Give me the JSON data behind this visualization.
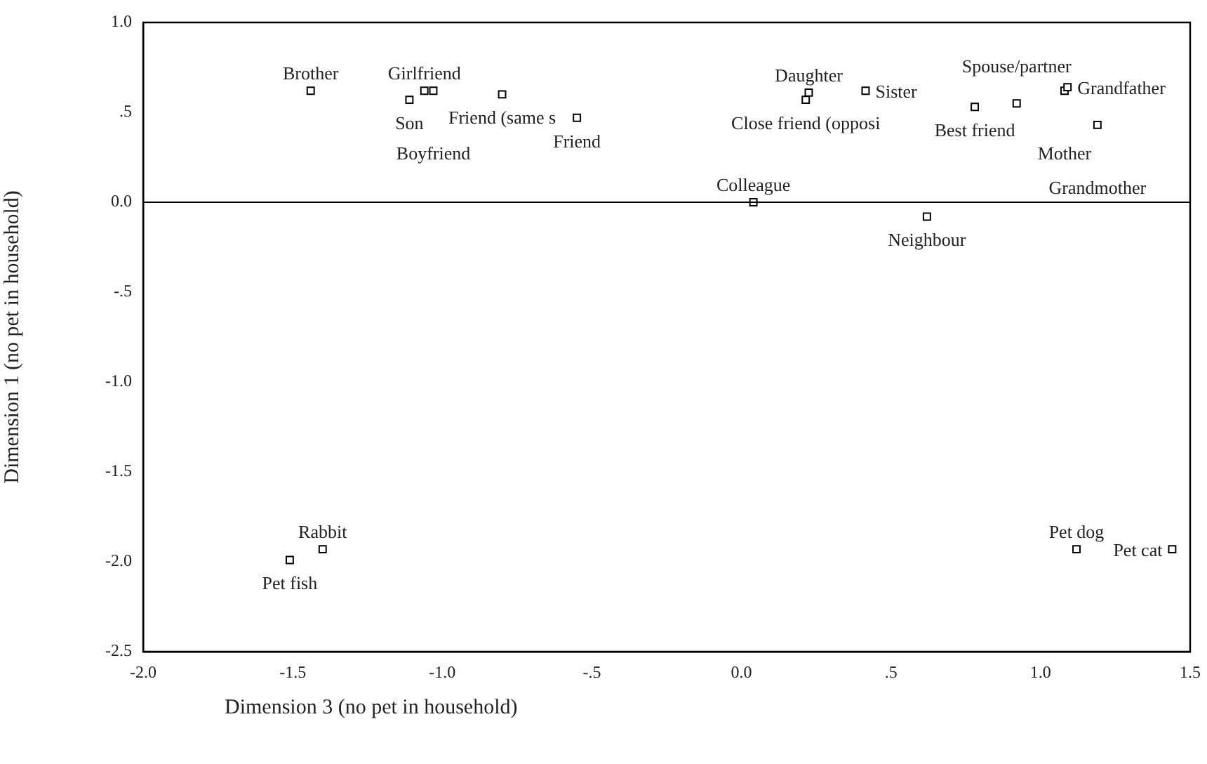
{
  "chart_data": {
    "type": "scatter",
    "xlabel": "Dimension 3 (no pet in household)",
    "ylabel": "Dimension 1 (no pet in household)",
    "x": [
      -1.44,
      -1.11,
      -1.06,
      -1.03,
      -0.8,
      -0.55,
      0.215,
      0.225,
      0.415,
      0.78,
      0.92,
      1.08,
      1.09,
      1.19,
      0.04,
      0.62,
      -1.51,
      -1.4,
      1.12,
      1.44
    ],
    "series": [
      {
        "color": "#000000",
        "values": [
          0.62,
          0.57,
          0.62,
          0.62,
          0.6,
          0.47,
          0.57,
          0.61,
          0.62,
          0.53,
          0.55,
          0.62,
          0.64,
          0.43,
          0.0,
          -0.08,
          -1.99,
          -1.93,
          -1.93,
          -1.93
        ]
      }
    ],
    "annotations": [
      {
        "text": "Brother",
        "x": -1.44,
        "y": 0.62
      },
      {
        "text": "Son",
        "x": -1.11,
        "y": 0.57
      },
      {
        "text": "Girlfriend",
        "x": -1.06,
        "y": 0.62
      },
      {
        "text": "Boyfriend",
        "x": -1.03,
        "y": 0.62
      },
      {
        "text": "Friend (same s",
        "x": -0.8,
        "y": 0.6
      },
      {
        "text": "Friend",
        "x": -0.55,
        "y": 0.47
      },
      {
        "text": "Close friend (opposi",
        "x": 0.215,
        "y": 0.57
      },
      {
        "text": "Daughter",
        "x": 0.225,
        "y": 0.61
      },
      {
        "text": "Sister",
        "x": 0.415,
        "y": 0.62
      },
      {
        "text": "Best friend",
        "x": 0.78,
        "y": 0.53
      },
      {
        "text": "Spouse/partner",
        "x": 0.92,
        "y": 0.55
      },
      {
        "text": "Mother",
        "x": 1.08,
        "y": 0.62
      },
      {
        "text": "Grandfather",
        "x": 1.09,
        "y": 0.64
      },
      {
        "text": "Grandmother",
        "x": 1.19,
        "y": 0.43
      },
      {
        "text": "Colleague",
        "x": 0.04,
        "y": 0.0
      },
      {
        "text": "Neighbour",
        "x": 0.62,
        "y": -0.08
      },
      {
        "text": "Pet fish",
        "x": -1.51,
        "y": -1.99
      },
      {
        "text": "Rabbit",
        "x": -1.4,
        "y": -1.93
      },
      {
        "text": "Pet dog",
        "x": 1.12,
        "y": -1.93
      },
      {
        "text": "Pet cat",
        "x": 1.44,
        "y": -1.93
      }
    ],
    "xlim": [
      -2.0,
      1.5
    ],
    "ylim": [
      -2.5,
      1.0
    ],
    "xticks": [
      {
        "value": -2.0,
        "label": "-2.0"
      },
      {
        "value": -1.5,
        "label": "-1.5"
      },
      {
        "value": -1.0,
        "label": "-1.0"
      },
      {
        "value": -0.5,
        "label": "-.5"
      },
      {
        "value": 0,
        "label": "0.0"
      },
      {
        "value": 0.5,
        "label": ".5"
      },
      {
        "value": 1.0,
        "label": "1.0"
      },
      {
        "value": 1.5,
        "label": "1.5"
      }
    ],
    "yticks": [
      {
        "value": -2.5,
        "label": "-2.5"
      },
      {
        "value": -2.0,
        "label": "-2.0"
      },
      {
        "value": -1.5,
        "label": "-1.5"
      },
      {
        "value": -1.0,
        "label": "-1.0"
      },
      {
        "value": -0.5,
        "label": "-.5"
      },
      {
        "value": 0,
        "label": "0.0"
      },
      {
        "value": 0.5,
        "label": ".5"
      },
      {
        "value": 1.0,
        "label": "1.0"
      }
    ],
    "ref_lines": [
      {
        "axis": "y",
        "value": 0,
        "color": "#000000"
      }
    ],
    "grid": false,
    "legend": false,
    "marker": "square"
  }
}
